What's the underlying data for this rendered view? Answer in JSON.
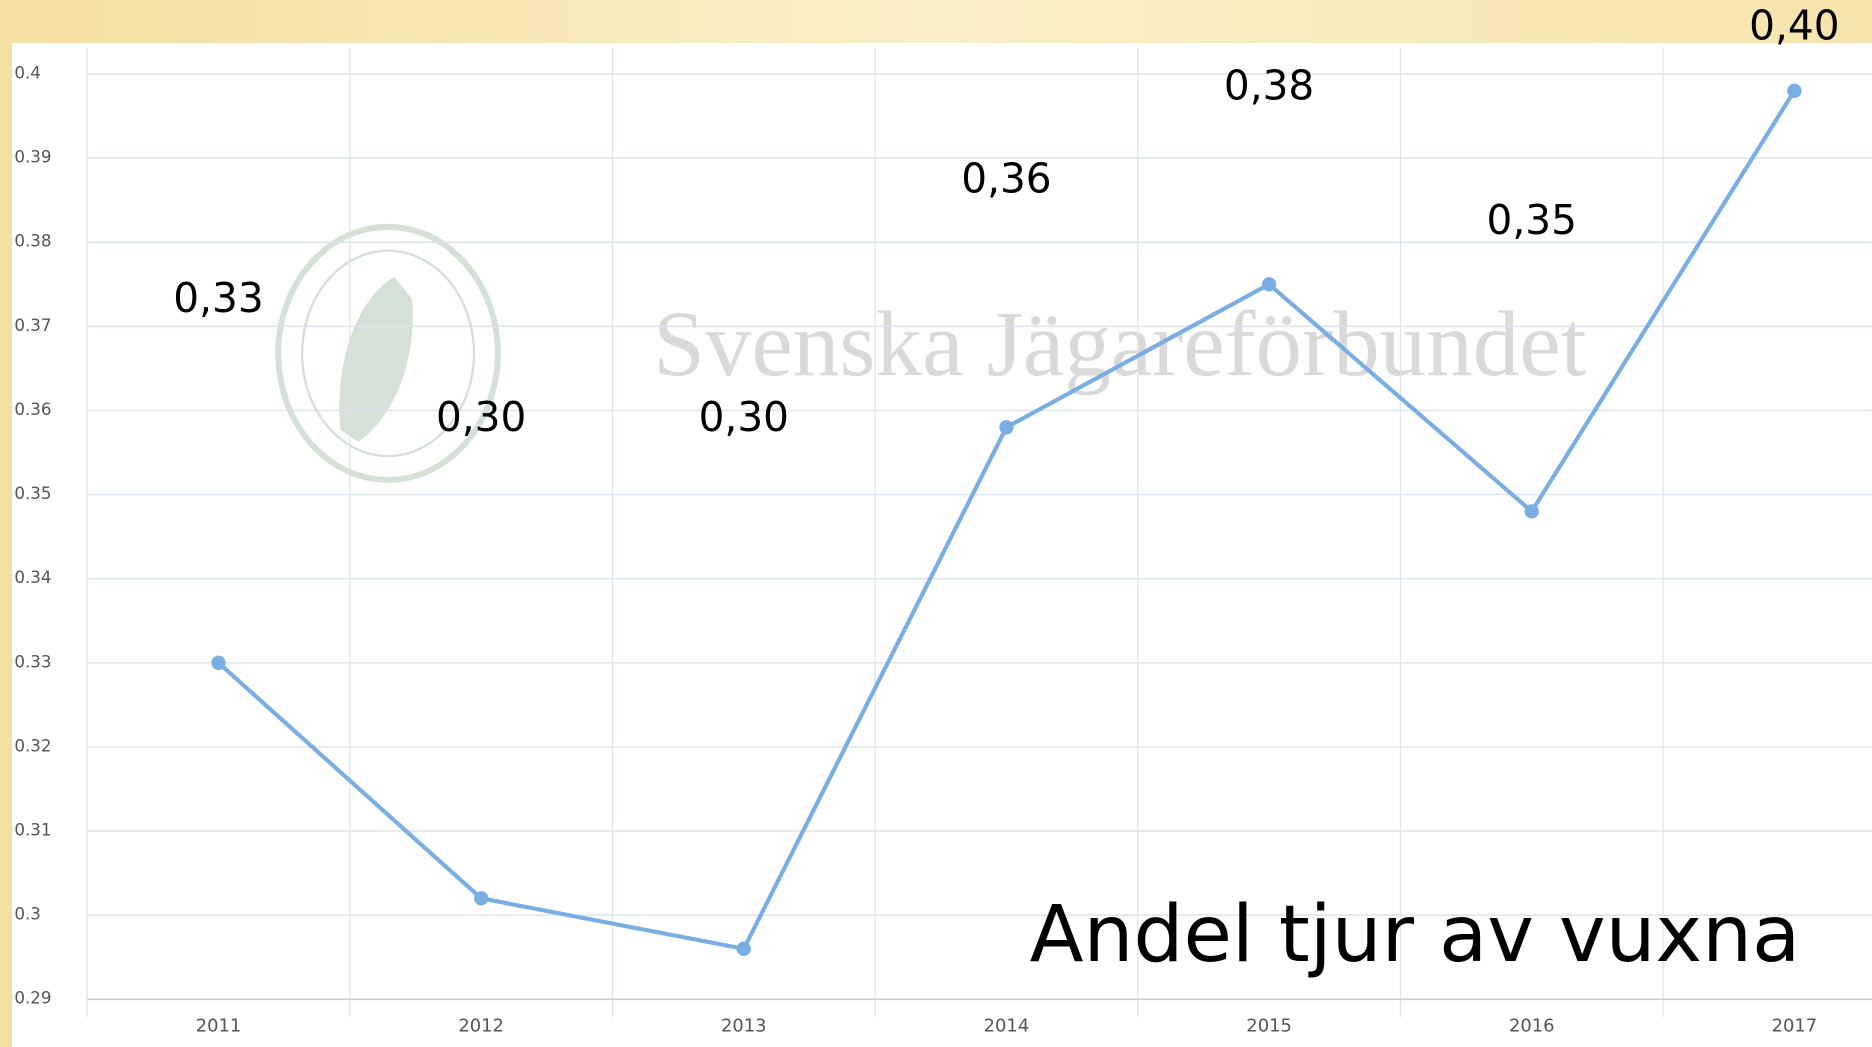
{
  "chart_data": {
    "type": "line",
    "title": "Andel tjur av vuxna",
    "watermark": "Svenska Jägareförbundet",
    "categories": [
      "2011",
      "2012",
      "2013",
      "2014",
      "2015",
      "2016",
      "2017"
    ],
    "series": [
      {
        "name": "Andel tjur",
        "color": "#7aaee3",
        "values": [
          0.33,
          0.302,
          0.296,
          0.358,
          0.375,
          0.348,
          0.398
        ],
        "value_labels": [
          "0,33",
          "0,30",
          "0,30",
          "0,36",
          "0,38",
          "0,35",
          "0,40"
        ]
      }
    ],
    "ylim": [
      0.29,
      0.4
    ],
    "yticks": [
      0.29,
      0.3,
      0.31,
      0.32,
      0.33,
      0.34,
      0.35,
      0.36,
      0.37,
      0.38,
      0.39,
      0.4
    ],
    "grid": true
  }
}
